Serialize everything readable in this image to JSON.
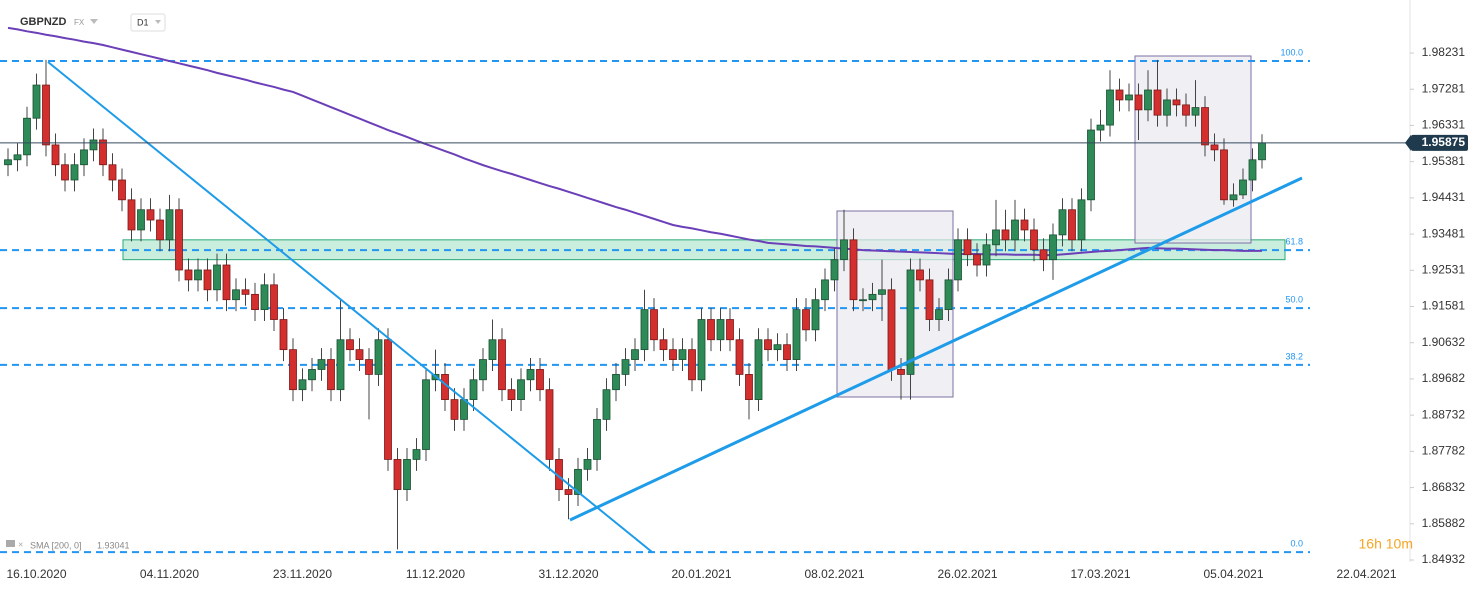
{
  "chart_data": {
    "type": "candlestick",
    "symbol": "GBPNZD",
    "market": "FX",
    "timeframe": "D1",
    "countdown": "16h 10m",
    "up_color": "#2e8b57",
    "down_color": "#d32f2f",
    "categories": [
      null,
      null,
      null,
      "16.10.2020",
      null,
      null,
      null,
      null,
      null,
      null,
      null,
      null,
      null,
      null,
      null,
      null,
      null,
      "04.11.2020",
      null,
      null,
      null,
      null,
      null,
      null,
      null,
      null,
      null,
      null,
      null,
      null,
      null,
      "23.11.2020",
      null,
      null,
      null,
      null,
      null,
      null,
      null,
      null,
      null,
      null,
      null,
      null,
      null,
      "11.12.2020",
      null,
      null,
      null,
      null,
      null,
      null,
      null,
      null,
      null,
      null,
      null,
      null,
      null,
      "31.12.2020",
      null,
      null,
      null,
      null,
      null,
      null,
      null,
      null,
      null,
      null,
      null,
      null,
      null,
      "20.01.2021",
      null,
      null,
      null,
      null,
      null,
      null,
      null,
      null,
      null,
      null,
      null,
      null,
      null,
      "08.02.2021",
      null,
      null,
      null,
      null,
      null,
      null,
      null,
      null,
      null,
      null,
      null,
      null,
      null,
      "26.02.2021",
      null,
      null,
      null,
      null,
      null,
      null,
      null,
      null,
      null,
      null,
      null,
      null,
      null,
      "17.03.2021",
      null,
      null,
      null,
      null,
      null,
      null,
      null,
      null,
      null,
      null,
      null,
      null,
      null,
      "05.04.2021",
      null,
      null,
      null,
      null,
      null,
      null,
      null,
      null,
      null,
      null,
      null,
      null,
      null,
      "22.04.2021"
    ],
    "open": [
      1.953,
      1.9543,
      1.9556,
      1.9652,
      1.9739,
      1.9582,
      1.953,
      1.949,
      1.953,
      1.9569,
      1.9595,
      1.953,
      1.949,
      1.9438,
      1.9359,
      1.9412,
      1.9385,
      1.9333,
      1.9412,
      1.9254,
      1.9228,
      1.9254,
      1.9202,
      1.9267,
      1.9176,
      1.9202,
      1.919,
      1.915,
      1.9215,
      1.9124,
      1.9045,
      1.894,
      1.8966,
      1.8993,
      1.9019,
      1.894,
      1.9071,
      1.9045,
      1.9019,
      1.898,
      1.9071,
      1.8757,
      1.8678,
      1.8757,
      1.8783,
      1.8966,
      1.898,
      1.8914,
      1.8862,
      1.8914,
      1.8966,
      1.9019,
      1.9071,
      1.894,
      1.8914,
      1.8966,
      1.8993,
      1.894,
      1.8757,
      1.8678,
      1.8665,
      1.8731,
      1.8757,
      1.8862,
      1.894,
      1.898,
      1.9019,
      1.9045,
      1.915,
      1.9071,
      1.9045,
      1.9019,
      1.9045,
      1.8966,
      1.9124,
      1.9071,
      1.9124,
      1.9071,
      1.898,
      1.8914,
      1.9071,
      1.9045,
      1.9058,
      1.9019,
      1.915,
      1.9097,
      1.9176,
      1.9228,
      1.9281,
      1.9333,
      1.9176,
      1.9176,
      1.919,
      1.9202,
      1.8993,
      1.898,
      1.9254,
      1.9228,
      1.9124,
      1.915,
      1.9228,
      1.9333,
      1.9294,
      1.9267,
      1.932,
      1.9359,
      1.9333,
      1.9385,
      1.9359,
      1.9307,
      1.9281,
      1.9346,
      1.9412,
      1.9333,
      1.9438,
      1.9621,
      1.9634,
      1.9726,
      1.97,
      1.9713,
      1.9674,
      1.9726,
      1.966,
      1.97,
      1.9687,
      1.966,
      1.968,
      1.9582,
      1.9569,
      1.9438,
      1.9451,
      1.949,
      1.9543,
      null,
      null,
      null,
      null,
      null,
      null,
      null,
      null,
      null,
      null,
      null
    ],
    "high": [
      1.9573,
      1.9586,
      1.9682,
      1.9769,
      1.9805,
      1.9612,
      1.956,
      1.956,
      1.9599,
      1.9625,
      1.9625,
      1.956,
      1.952,
      1.9468,
      1.9442,
      1.9442,
      1.9415,
      1.9451,
      1.9442,
      1.9284,
      1.9284,
      1.9284,
      1.9297,
      1.9297,
      1.9232,
      1.9232,
      1.922,
      1.9245,
      1.9245,
      1.9154,
      1.9075,
      1.8996,
      1.9023,
      1.9049,
      1.9049,
      1.9175,
      1.9101,
      1.9075,
      1.9049,
      1.9101,
      1.9101,
      1.8787,
      1.8787,
      1.8813,
      1.8996,
      1.9045,
      1.901,
      1.8944,
      1.8944,
      1.8996,
      1.9049,
      1.9124,
      1.9101,
      1.897,
      1.8996,
      1.9023,
      1.9023,
      1.897,
      1.8787,
      1.8708,
      1.8761,
      1.8787,
      1.8892,
      1.897,
      1.901,
      1.9049,
      1.9075,
      1.9202,
      1.918,
      1.9101,
      1.9075,
      1.9075,
      1.9075,
      1.9154,
      1.9154,
      1.9154,
      1.9154,
      1.9101,
      1.901,
      1.9101,
      1.9101,
      1.9088,
      1.9088,
      1.918,
      1.918,
      1.9206,
      1.9258,
      1.9311,
      1.9412,
      1.9363,
      1.9206,
      1.922,
      1.9281,
      1.9232,
      1.9023,
      1.9284,
      1.9284,
      1.9258,
      1.918,
      1.9258,
      1.9363,
      1.9363,
      1.9324,
      1.935,
      1.9438,
      1.9412,
      1.9438,
      1.9415,
      1.9389,
      1.9337,
      1.9376,
      1.9442,
      1.9442,
      1.9468,
      1.9651,
      1.9674,
      1.9778,
      1.9756,
      1.9743,
      1.9743,
      1.9778,
      1.9805,
      1.973,
      1.973,
      1.9717,
      1.9752,
      1.971,
      1.9612,
      1.9599,
      1.9481,
      1.952,
      1.9573,
      1.961,
      null,
      null,
      null,
      null,
      null,
      null,
      null,
      null,
      null,
      null,
      null
    ],
    "low": [
      1.95,
      1.9513,
      1.9526,
      1.9622,
      1.9552,
      1.95,
      1.946,
      1.946,
      1.95,
      1.9539,
      1.95,
      1.946,
      1.9408,
      1.9329,
      1.9329,
      1.9355,
      1.9303,
      1.9303,
      1.9224,
      1.9198,
      1.9198,
      1.9172,
      1.9172,
      1.9146,
      1.9146,
      1.916,
      1.912,
      1.912,
      1.9094,
      1.9015,
      1.891,
      1.891,
      1.8936,
      1.8963,
      1.891,
      1.891,
      1.9015,
      1.8989,
      1.8862,
      1.895,
      1.8727,
      1.8521,
      1.8648,
      1.8727,
      1.8753,
      1.8936,
      1.8884,
      1.8832,
      1.8832,
      1.8884,
      1.8936,
      1.8989,
      1.891,
      1.8884,
      1.8884,
      1.8936,
      1.891,
      1.8727,
      1.8648,
      1.86,
      1.8635,
      1.8701,
      1.8727,
      1.8832,
      1.891,
      1.895,
      1.8989,
      1.9015,
      1.9041,
      1.9015,
      1.8989,
      1.8989,
      1.8936,
      1.8936,
      1.9041,
      1.9041,
      1.9041,
      1.895,
      1.8862,
      1.8884,
      1.9015,
      1.9015,
      1.8989,
      1.8989,
      1.9067,
      1.9067,
      1.9146,
      1.9198,
      1.9251,
      1.9146,
      1.9146,
      1.9146,
      1.912,
      1.8963,
      1.8914,
      1.8914,
      1.9198,
      1.9094,
      1.9094,
      1.912,
      1.9198,
      1.9264,
      1.9237,
      1.9237,
      1.929,
      1.9303,
      1.9303,
      1.9329,
      1.9277,
      1.9251,
      1.9228,
      1.9316,
      1.9303,
      1.9303,
      1.9408,
      1.9591,
      1.9604,
      1.967,
      1.967,
      1.9595,
      1.9644,
      1.963,
      1.963,
      1.9657,
      1.963,
      1.963,
      1.9552,
      1.9539,
      1.9425,
      1.942,
      1.944,
      1.946,
      1.952,
      null,
      null,
      null,
      null,
      null,
      null,
      null,
      null,
      null,
      null,
      null
    ],
    "close": [
      1.9543,
      1.9556,
      1.9652,
      1.9739,
      1.9582,
      1.953,
      1.949,
      1.953,
      1.9569,
      1.9595,
      1.953,
      1.949,
      1.9438,
      1.9359,
      1.9412,
      1.9385,
      1.9333,
      1.9412,
      1.9254,
      1.9228,
      1.9254,
      1.9202,
      1.9267,
      1.9176,
      1.9202,
      1.919,
      1.915,
      1.9215,
      1.9124,
      1.9045,
      1.894,
      1.8966,
      1.8993,
      1.9019,
      1.894,
      1.9071,
      1.9045,
      1.9019,
      1.898,
      1.9071,
      1.8757,
      1.8678,
      1.8757,
      1.8783,
      1.8966,
      1.898,
      1.8914,
      1.8862,
      1.8914,
      1.8966,
      1.9019,
      1.9071,
      1.894,
      1.8914,
      1.8966,
      1.8993,
      1.894,
      1.8757,
      1.8678,
      1.8665,
      1.8731,
      1.8757,
      1.8862,
      1.894,
      1.898,
      1.9019,
      1.9045,
      1.915,
      1.9071,
      1.9045,
      1.9019,
      1.9045,
      1.8966,
      1.9124,
      1.9071,
      1.9124,
      1.9071,
      1.898,
      1.8914,
      1.9071,
      1.9045,
      1.9058,
      1.9019,
      1.915,
      1.9097,
      1.9176,
      1.9228,
      1.9281,
      1.9333,
      1.9176,
      1.9176,
      1.919,
      1.9202,
      1.8993,
      1.898,
      1.9254,
      1.9228,
      1.9124,
      1.915,
      1.9228,
      1.9333,
      1.9294,
      1.9267,
      1.932,
      1.9359,
      1.9333,
      1.9385,
      1.9359,
      1.9307,
      1.9281,
      1.9346,
      1.9412,
      1.9333,
      1.9438,
      1.9621,
      1.9634,
      1.9726,
      1.97,
      1.9713,
      1.9674,
      1.9726,
      1.966,
      1.97,
      1.9687,
      1.966,
      1.968,
      1.9582,
      1.9569,
      1.9438,
      1.9451,
      1.949,
      1.9543,
      1.95875,
      null,
      null,
      null,
      null,
      null,
      null,
      null,
      null,
      null,
      null,
      null
    ],
    "last_price": 1.95875,
    "sma": {
      "name": "SMA [200, 0]",
      "color": "#6b3fb8",
      "values": [
        1.9889,
        1.9885,
        1.988,
        1.9876,
        1.9871,
        1.9867,
        1.9862,
        1.9858,
        1.9853,
        1.9849,
        1.9844,
        1.9838,
        1.9832,
        1.9826,
        1.982,
        1.9814,
        1.9808,
        1.9802,
        1.9796,
        1.979,
        1.9784,
        1.9778,
        1.9771,
        1.9765,
        1.9759,
        1.9753,
        1.9746,
        1.974,
        1.9734,
        1.9727,
        1.9721,
        1.9711,
        1.9701,
        1.9691,
        1.9681,
        1.9671,
        1.9661,
        1.9651,
        1.9641,
        1.9631,
        1.9621,
        1.9612,
        1.9603,
        1.9593,
        1.9584,
        1.9575,
        1.9566,
        1.9557,
        1.9547,
        1.9538,
        1.9529,
        1.9521,
        1.9513,
        1.9506,
        1.9498,
        1.949,
        1.9482,
        1.9474,
        1.9467,
        1.9459,
        1.9451,
        1.9443,
        1.9435,
        1.9427,
        1.9419,
        1.9412,
        1.9404,
        1.9396,
        1.9388,
        1.938,
        1.9372,
        1.9367,
        1.9363,
        1.9358,
        1.9353,
        1.9349,
        1.9344,
        1.9339,
        1.9334,
        1.933,
        1.9325,
        1.9323,
        1.9321,
        1.9319,
        1.9317,
        1.9316,
        1.9314,
        1.9312,
        1.931,
        1.9308,
        1.9306,
        1.9305,
        1.9304,
        1.9303,
        1.9302,
        1.9301,
        1.93,
        1.9299,
        1.9298,
        1.9297,
        1.9296,
        1.9296,
        1.9296,
        1.9295,
        1.9295,
        1.9295,
        1.9294,
        1.9294,
        1.9294,
        1.9293,
        1.9293,
        1.9295,
        1.9297,
        1.9299,
        1.9301,
        1.9303,
        1.9304,
        1.9306,
        1.9308,
        1.931,
        1.9312,
        1.9311,
        1.931,
        1.931,
        1.9309,
        1.9308,
        1.9307,
        1.9306,
        1.9306,
        1.9305,
        1.9304,
        1.9304,
        1.93041,
        null,
        null,
        null,
        null,
        null,
        null,
        null,
        null,
        null,
        null,
        null
      ]
    },
    "fib_color": "#2196f3",
    "fib_levels": [
      {
        "label": "100.0",
        "price": 1.9802
      },
      {
        "label": "61.8",
        "price": 1.9306
      },
      {
        "label": "50.0",
        "price": 1.9154
      },
      {
        "label": "38.2",
        "price": 1.9005
      },
      {
        "label": "0.0",
        "price": 1.8514
      }
    ],
    "zone": [
      1.9281,
      1.9333
    ],
    "ylim": [
      1.84539,
      1.99621
    ],
    "yticks": [
      1.98231,
      1.97281,
      1.96331,
      1.95381,
      1.94431,
      1.93481,
      1.92531,
      1.91581,
      1.90632,
      1.89682,
      1.88732,
      1.87782,
      1.86832,
      1.85882,
      1.84932
    ]
  }
}
